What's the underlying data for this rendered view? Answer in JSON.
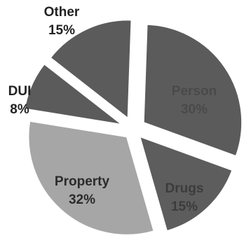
{
  "chart_data": {
    "type": "pie",
    "exploded": true,
    "slices": [
      {
        "label": "Person",
        "percent_text": "30%",
        "value": 30,
        "color": "#5b5b5b",
        "label_color": "#4a4a4a"
      },
      {
        "label": "Drugs",
        "percent_text": "15%",
        "value": 15,
        "color": "#5d5d5d",
        "label_color": "#3c3c3c"
      },
      {
        "label": "Property",
        "percent_text": "32%",
        "value": 32,
        "color": "#a6a6a6",
        "label_color": "#2b2b2b"
      },
      {
        "label": "DUI",
        "percent_text": "8%",
        "value": 8,
        "color": "#5b5b5b",
        "label_color": "#222222"
      },
      {
        "label": "Other",
        "percent_text": "15%",
        "value": 15,
        "color": "#5b5b5b",
        "label_color": "#222222"
      }
    ]
  }
}
